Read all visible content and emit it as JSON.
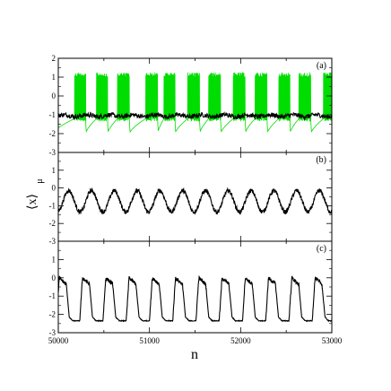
{
  "chart_data": [
    {
      "type": "line",
      "panel": "a",
      "label": "(a)",
      "xlim": [
        50000,
        53000
      ],
      "ylim": [
        -3,
        2
      ],
      "series": [
        {
          "color": "#00dd00",
          "pattern": "bursting",
          "bursts": [
            {
              "start": 50180,
              "end": 50300
            },
            {
              "start": 50420,
              "end": 50540
            },
            {
              "start": 50650,
              "end": 50780
            },
            {
              "start": 50960,
              "end": 51090
            },
            {
              "start": 51160,
              "end": 51280
            },
            {
              "start": 51420,
              "end": 51550
            },
            {
              "start": 51650,
              "end": 51780
            },
            {
              "start": 51920,
              "end": 52050
            },
            {
              "start": 52160,
              "end": 52290
            },
            {
              "start": 52420,
              "end": 52540
            },
            {
              "start": 52640,
              "end": 52770
            },
            {
              "start": 52910,
              "end": 53000
            }
          ],
          "spike_top": 1.25,
          "spike_bottom": -1.35,
          "rest_low": -2.0,
          "rest_high": -1.2
        },
        {
          "color": "#000000",
          "pattern": "noisy-flat",
          "mean": -1.05,
          "amplitude": 0.12
        }
      ]
    },
    {
      "type": "line",
      "panel": "b",
      "label": "(b)",
      "xlim": [
        50000,
        53000
      ],
      "ylim": [
        -3,
        2
      ],
      "series": [
        {
          "color": "#000000",
          "pattern": "noisy-oscillation",
          "mean": -0.75,
          "amplitude": 0.6,
          "period": 250,
          "noise": 0.12
        }
      ]
    },
    {
      "type": "line",
      "panel": "c",
      "label": "(c)",
      "xlim": [
        50000,
        53000
      ],
      "ylim": [
        -3,
        2
      ],
      "series": [
        {
          "color": "#000000",
          "pattern": "square-wave",
          "high": 0.0,
          "low": -2.35,
          "period": 255,
          "noise": 0.1
        }
      ]
    }
  ],
  "yticks": [
    "-3",
    "-2",
    "-1",
    "0",
    "1",
    "2"
  ],
  "xticks": [
    "50000",
    "51000",
    "52000",
    "53000"
  ],
  "xlabel": "n",
  "ylabel": "⟨x⟩",
  "ylabel_sub": "μ"
}
